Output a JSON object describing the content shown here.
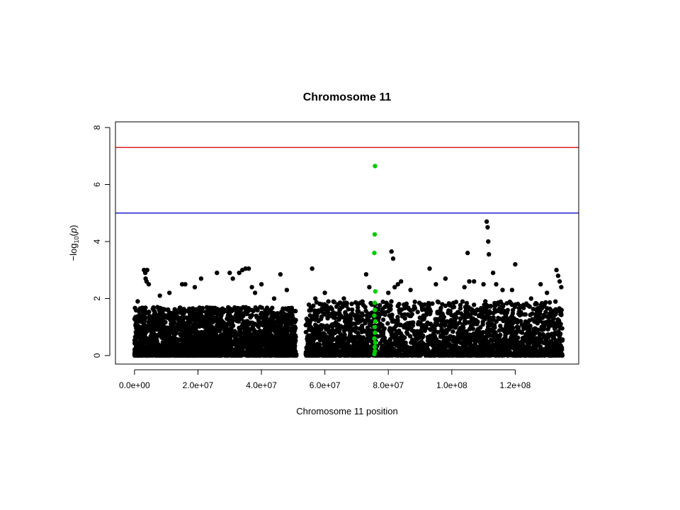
{
  "chart_data": {
    "type": "scatter",
    "title": "Chromosome 11",
    "xlabel": "Chromosome 11 position",
    "ylabel": "-log10(p)",
    "xlim": [
      -6000000,
      140000000
    ],
    "ylim": [
      -0.3,
      8.2
    ],
    "x_ticks": [
      0,
      20000000,
      40000000,
      60000000,
      80000000,
      100000000,
      120000000
    ],
    "x_tick_labels": [
      "0.0e+00",
      "2.0e+07",
      "4.0e+07",
      "6.0e+07",
      "8.0e+07",
      "1.0e+08",
      "1.2e+08"
    ],
    "y_ticks": [
      0,
      2,
      4,
      6,
      8
    ],
    "y_tick_labels": [
      "0",
      "2",
      "4",
      "6",
      "8"
    ],
    "thresholds": [
      {
        "value": 7.3,
        "color": "#dd2222"
      },
      {
        "value": 5.0,
        "color": "#2222cc"
      }
    ],
    "series_colors": {
      "default": "#000000",
      "highlight": "#00cc00"
    },
    "grid": false,
    "legend": "none",
    "series": [
      {
        "highlight": false,
        "points": [
          [
            3000000,
            3.0
          ],
          [
            3400000,
            2.9
          ],
          [
            4000000,
            3.0
          ],
          [
            3800000,
            2.6
          ],
          [
            4500000,
            2.5
          ],
          [
            3500000,
            2.7
          ],
          [
            1000000,
            1.9
          ],
          [
            8000000,
            2.1
          ],
          [
            11000000,
            2.2
          ],
          [
            15000000,
            2.5
          ],
          [
            16000000,
            2.5
          ],
          [
            19000000,
            2.4
          ],
          [
            21000000,
            2.7
          ],
          [
            26000000,
            2.9
          ],
          [
            30000000,
            2.9
          ],
          [
            31000000,
            2.7
          ],
          [
            33000000,
            2.9
          ],
          [
            34000000,
            3.0
          ],
          [
            35000000,
            3.05
          ],
          [
            36000000,
            3.05
          ],
          [
            37000000,
            2.4
          ],
          [
            38000000,
            2.2
          ],
          [
            40000000,
            2.5
          ],
          [
            44000000,
            2.0
          ],
          [
            46000000,
            2.85
          ],
          [
            48000000,
            2.3
          ],
          [
            56000000,
            3.05
          ],
          [
            57000000,
            2.0
          ],
          [
            60000000,
            2.2
          ],
          [
            66000000,
            2.0
          ],
          [
            73000000,
            2.85
          ],
          [
            74000000,
            2.4
          ],
          [
            80000000,
            2.2
          ],
          [
            81000000,
            3.65
          ],
          [
            81500000,
            3.4
          ],
          [
            82000000,
            2.4
          ],
          [
            83000000,
            2.5
          ],
          [
            84000000,
            2.6
          ],
          [
            87000000,
            2.3
          ],
          [
            93000000,
            3.05
          ],
          [
            95000000,
            2.5
          ],
          [
            98000000,
            2.7
          ],
          [
            104000000,
            2.4
          ],
          [
            105000000,
            3.6
          ],
          [
            105500000,
            2.6
          ],
          [
            107000000,
            2.6
          ],
          [
            110000000,
            2.5
          ],
          [
            111000000,
            4.7
          ],
          [
            111300000,
            4.5
          ],
          [
            111500000,
            4.0
          ],
          [
            111700000,
            3.55
          ],
          [
            113000000,
            2.9
          ],
          [
            114000000,
            2.5
          ],
          [
            116000000,
            2.3
          ],
          [
            119000000,
            2.3
          ],
          [
            120000000,
            3.2
          ],
          [
            125000000,
            2.0
          ],
          [
            128000000,
            2.5
          ],
          [
            130000000,
            2.2
          ],
          [
            133000000,
            3.0
          ],
          [
            133500000,
            2.8
          ],
          [
            134000000,
            2.6
          ],
          [
            134500000,
            2.4
          ]
        ]
      },
      {
        "highlight": true,
        "points": [
          [
            75800000,
            6.65
          ],
          [
            75700000,
            4.25
          ],
          [
            75600000,
            3.6
          ],
          [
            75900000,
            2.25
          ],
          [
            75700000,
            1.85
          ],
          [
            75800000,
            1.6
          ],
          [
            75600000,
            1.4
          ],
          [
            75900000,
            1.2
          ],
          [
            75700000,
            1.0
          ],
          [
            75800000,
            0.8
          ],
          [
            75600000,
            0.6
          ],
          [
            75900000,
            0.45
          ],
          [
            75700000,
            0.3
          ],
          [
            75800000,
            0.15
          ],
          [
            75600000,
            0.05
          ]
        ]
      }
    ],
    "dense_background": {
      "note_free": true,
      "blocks": [
        {
          "from": 0,
          "to": 51000000,
          "max": 1.7
        },
        {
          "from": 54000000,
          "to": 135000000,
          "max": 1.9
        }
      ],
      "count": 5200,
      "seed": 11
    }
  }
}
